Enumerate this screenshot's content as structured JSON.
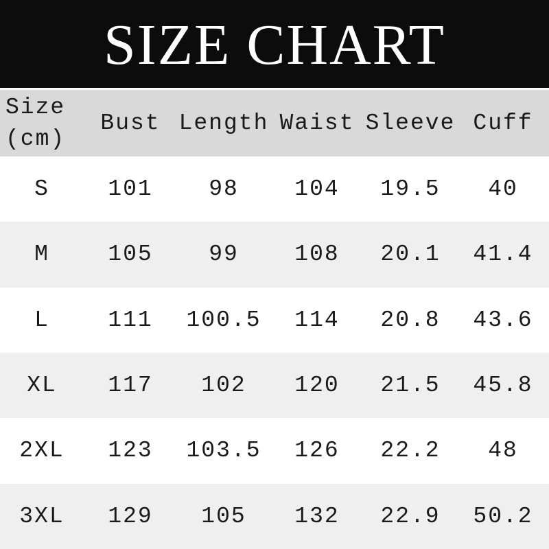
{
  "colors": {
    "banner_bg": "#0c0c0c",
    "title_text": "#ffffff",
    "header_row_bg": "#d9d9d9",
    "row_bg": "#ffffff",
    "alt_row_bg": "#efefef",
    "text": "#1a1a1a",
    "divider": "#ffffff"
  },
  "chart_data": {
    "type": "table",
    "title": "SIZE CHART",
    "size_header": {
      "line1": "Size",
      "line2": "(cm)"
    },
    "columns": [
      "Bust",
      "Length",
      "Waist",
      "Sleeve",
      "Cuff"
    ],
    "rows": [
      {
        "size": "S",
        "values": [
          "101",
          "98",
          "104",
          "19.5",
          "40"
        ]
      },
      {
        "size": "M",
        "values": [
          "105",
          "99",
          "108",
          "20.1",
          "41.4"
        ]
      },
      {
        "size": "L",
        "values": [
          "111",
          "100.5",
          "114",
          "20.8",
          "43.6"
        ]
      },
      {
        "size": "XL",
        "values": [
          "117",
          "102",
          "120",
          "21.5",
          "45.8"
        ]
      },
      {
        "size": "2XL",
        "values": [
          "123",
          "103.5",
          "126",
          "22.2",
          "48"
        ]
      },
      {
        "size": "3XL",
        "values": [
          "129",
          "105",
          "132",
          "22.9",
          "50.2"
        ]
      }
    ],
    "layout": {
      "striped": true,
      "stripe_rows": [
        "M",
        "XL",
        "3XL"
      ]
    }
  }
}
